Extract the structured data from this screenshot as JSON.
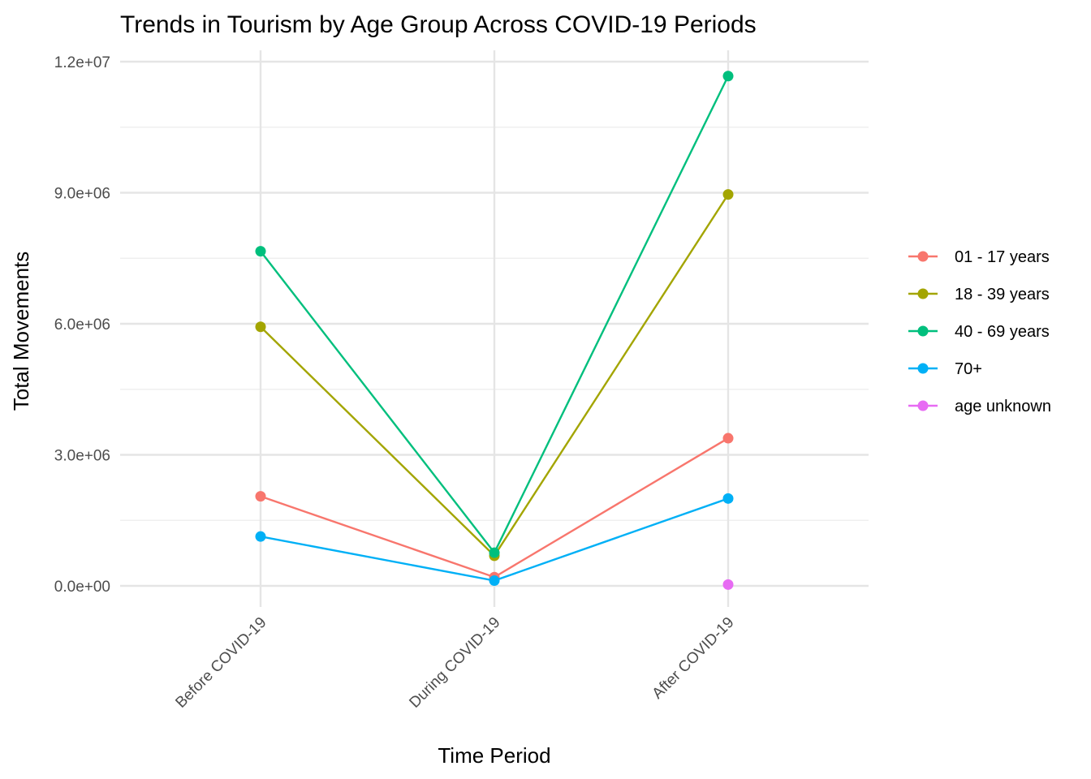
{
  "chart_data": {
    "type": "line",
    "title": "Trends in Tourism by Age Group Across COVID-19 Periods",
    "xlabel": "Time Period",
    "ylabel": "Total Movements",
    "categories": [
      "Before COVID-19",
      "During COVID-19",
      "After COVID-19"
    ],
    "ylim": [
      -400000,
      12500000
    ],
    "yticks": [
      0,
      3000000,
      6000000,
      9000000,
      12000000
    ],
    "ytick_labels": [
      "0.0e+00",
      "3.0e+06",
      "6.0e+06",
      "9.0e+06",
      "1.2e+07"
    ],
    "grid": true,
    "legend_position": "right",
    "series": [
      {
        "name": "01 - 17 years",
        "color": "#F8766D",
        "values": [
          2050000,
          200000,
          3380000
        ]
      },
      {
        "name": "18 - 39 years",
        "color": "#A3A500",
        "values": [
          5930000,
          690000,
          8960000
        ]
      },
      {
        "name": "40 - 69 years",
        "color": "#00BF7D",
        "values": [
          7660000,
          760000,
          11670000
        ]
      },
      {
        "name": "70+",
        "color": "#00B0F6",
        "values": [
          1130000,
          120000,
          2000000
        ]
      },
      {
        "name": "age unknown",
        "color": "#E76BF3",
        "values": [
          null,
          null,
          30000
        ]
      }
    ]
  }
}
